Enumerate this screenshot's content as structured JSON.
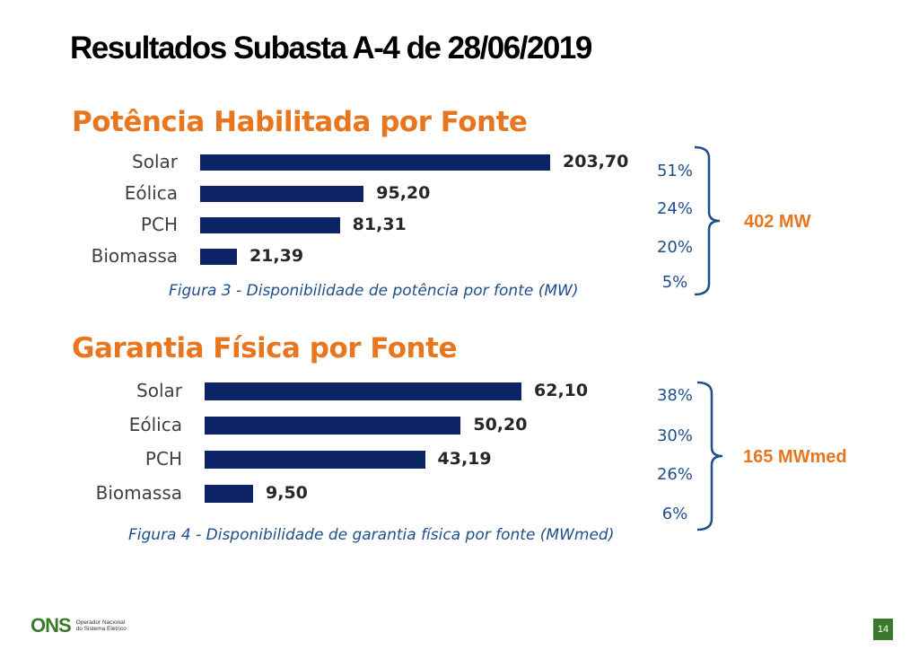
{
  "page": {
    "title": "Resultados Subasta A-4 de 28/06/2019",
    "page_number": "14",
    "logo": {
      "mark": "ONS",
      "line1": "Operador Nacional",
      "line2": "do Sistema Elétrico"
    }
  },
  "colors": {
    "bar": "#0c2366",
    "accent": "#e8761f",
    "caption": "#1f4e8c"
  },
  "chart_data": [
    {
      "type": "bar",
      "orientation": "horizontal",
      "title": "Potência Habilitada por Fonte",
      "caption": "Figura 3 - Disponibilidade de potência por fonte (MW)",
      "categories": [
        "Solar",
        "Eólica",
        "PCH",
        "Biomassa"
      ],
      "values": [
        203.7,
        95.2,
        81.31,
        21.39
      ],
      "value_labels": [
        "203,70",
        "95,20",
        "81,31",
        "21,39"
      ],
      "percentages": [
        "51%",
        "24%",
        "20%",
        "5%"
      ],
      "total": "402 MW"
    },
    {
      "type": "bar",
      "orientation": "horizontal",
      "title": "Garantia Física por Fonte",
      "caption": "Figura 4 - Disponibilidade de garantia física por fonte (MWmed)",
      "categories": [
        "Solar",
        "Eólica",
        "PCH",
        "Biomassa"
      ],
      "values": [
        62.1,
        50.2,
        43.19,
        9.5
      ],
      "value_labels": [
        "62,10",
        "50,20",
        "43,19",
        "9,50"
      ],
      "percentages": [
        "38%",
        "30%",
        "26%",
        "6%"
      ],
      "total": "165 MWmed"
    }
  ]
}
